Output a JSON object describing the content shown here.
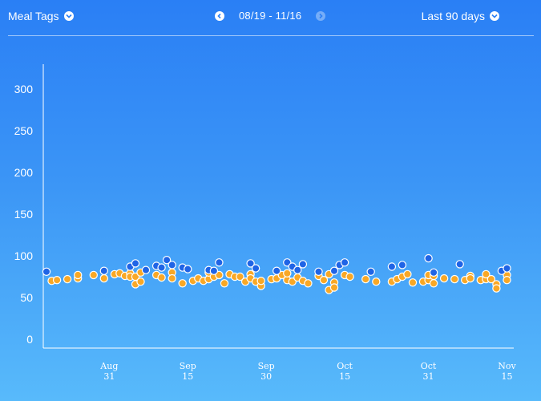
{
  "header": {
    "meal_tags_label": "Meal Tags",
    "date_range_label": "08/19 - 11/16",
    "range_select_label": "Last 90 days",
    "prev_enabled": true,
    "next_enabled": false
  },
  "colors": {
    "orange": "#f9a826",
    "blue": "#1f64e6",
    "axis": "#ffffff"
  },
  "chart_data": {
    "type": "scatter",
    "x_unit": "date",
    "ylim": [
      0,
      330
    ],
    "yticks": [
      0,
      50,
      100,
      150,
      200,
      250,
      300
    ],
    "xlim": [
      "2018-08-19",
      "2018-11-16"
    ],
    "xticks": [
      {
        "month": "Aug",
        "day": "31",
        "date": "2018-08-31"
      },
      {
        "month": "Sep",
        "day": "15",
        "date": "2018-09-15"
      },
      {
        "month": "Sep",
        "day": "30",
        "date": "2018-09-30"
      },
      {
        "month": "Oct",
        "day": "15",
        "date": "2018-10-15"
      },
      {
        "month": "Oct",
        "day": "31",
        "date": "2018-10-31"
      },
      {
        "month": "Nov",
        "day": "15",
        "date": "2018-11-15"
      }
    ],
    "series": [
      {
        "color_key": "orange",
        "points": [
          [
            "2018-08-20",
            70
          ],
          [
            "2018-08-21",
            71
          ],
          [
            "2018-08-23",
            72
          ],
          [
            "2018-08-25",
            73
          ],
          [
            "2018-08-25",
            77
          ],
          [
            "2018-08-28",
            77
          ],
          [
            "2018-08-30",
            73
          ],
          [
            "2018-09-01",
            78
          ],
          [
            "2018-09-02",
            79
          ],
          [
            "2018-09-03",
            76
          ],
          [
            "2018-09-04",
            79
          ],
          [
            "2018-09-04",
            75
          ],
          [
            "2018-09-05",
            66
          ],
          [
            "2018-09-05",
            75
          ],
          [
            "2018-09-06",
            69
          ],
          [
            "2018-09-06",
            80
          ],
          [
            "2018-09-09",
            77
          ],
          [
            "2018-09-10",
            74
          ],
          [
            "2018-09-12",
            80
          ],
          [
            "2018-09-12",
            73
          ],
          [
            "2018-09-14",
            67
          ],
          [
            "2018-09-16",
            70
          ],
          [
            "2018-09-17",
            73
          ],
          [
            "2018-09-18",
            70
          ],
          [
            "2018-09-19",
            72
          ],
          [
            "2018-09-19",
            80
          ],
          [
            "2018-09-20",
            75
          ],
          [
            "2018-09-21",
            77
          ],
          [
            "2018-09-22",
            67
          ],
          [
            "2018-09-23",
            78
          ],
          [
            "2018-09-24",
            75
          ],
          [
            "2018-09-25",
            75
          ],
          [
            "2018-09-26",
            69
          ],
          [
            "2018-09-27",
            78
          ],
          [
            "2018-09-27",
            73
          ],
          [
            "2018-09-28",
            69
          ],
          [
            "2018-09-29",
            64
          ],
          [
            "2018-09-29",
            70
          ],
          [
            "2018-10-01",
            72
          ],
          [
            "2018-10-02",
            73
          ],
          [
            "2018-10-03",
            77
          ],
          [
            "2018-10-04",
            71
          ],
          [
            "2018-10-04",
            79
          ],
          [
            "2018-10-05",
            69
          ],
          [
            "2018-10-06",
            74
          ],
          [
            "2018-10-07",
            70
          ],
          [
            "2018-10-08",
            67
          ],
          [
            "2018-10-10",
            76
          ],
          [
            "2018-10-11",
            71
          ],
          [
            "2018-10-12",
            78
          ],
          [
            "2018-10-12",
            59
          ],
          [
            "2018-10-13",
            68
          ],
          [
            "2018-10-13",
            62
          ],
          [
            "2018-10-15",
            77
          ],
          [
            "2018-10-16",
            75
          ],
          [
            "2018-10-19",
            72
          ],
          [
            "2018-10-21",
            69
          ],
          [
            "2018-10-24",
            69
          ],
          [
            "2018-10-25",
            72
          ],
          [
            "2018-10-26",
            75
          ],
          [
            "2018-10-27",
            78
          ],
          [
            "2018-10-28",
            68
          ],
          [
            "2018-10-30",
            69
          ],
          [
            "2018-10-31",
            71
          ],
          [
            "2018-10-31",
            77
          ],
          [
            "2018-11-01",
            76
          ],
          [
            "2018-11-01",
            67
          ],
          [
            "2018-11-03",
            73
          ],
          [
            "2018-11-05",
            72
          ],
          [
            "2018-11-07",
            71
          ],
          [
            "2018-11-08",
            76
          ],
          [
            "2018-11-08",
            73
          ],
          [
            "2018-11-10",
            71
          ],
          [
            "2018-11-11",
            72
          ],
          [
            "2018-11-11",
            78
          ],
          [
            "2018-11-12",
            72
          ],
          [
            "2018-11-13",
            66
          ],
          [
            "2018-11-13",
            61
          ],
          [
            "2018-11-15",
            77
          ],
          [
            "2018-11-15",
            71
          ]
        ]
      },
      {
        "color_key": "blue",
        "points": [
          [
            "2018-08-19",
            81
          ],
          [
            "2018-08-30",
            82
          ],
          [
            "2018-09-04",
            87
          ],
          [
            "2018-09-05",
            91
          ],
          [
            "2018-09-07",
            83
          ],
          [
            "2018-09-09",
            88
          ],
          [
            "2018-09-10",
            86
          ],
          [
            "2018-09-11",
            95
          ],
          [
            "2018-09-12",
            89
          ],
          [
            "2018-09-14",
            86
          ],
          [
            "2018-09-15",
            84
          ],
          [
            "2018-09-19",
            83
          ],
          [
            "2018-09-20",
            82
          ],
          [
            "2018-09-21",
            92
          ],
          [
            "2018-09-27",
            91
          ],
          [
            "2018-09-28",
            85
          ],
          [
            "2018-10-02",
            82
          ],
          [
            "2018-10-04",
            92
          ],
          [
            "2018-10-05",
            87
          ],
          [
            "2018-10-06",
            83
          ],
          [
            "2018-10-07",
            90
          ],
          [
            "2018-10-10",
            81
          ],
          [
            "2018-10-13",
            82
          ],
          [
            "2018-10-14",
            89
          ],
          [
            "2018-10-15",
            92
          ],
          [
            "2018-10-20",
            81
          ],
          [
            "2018-10-24",
            87
          ],
          [
            "2018-10-26",
            89
          ],
          [
            "2018-10-31",
            97
          ],
          [
            "2018-11-01",
            80
          ],
          [
            "2018-11-06",
            90
          ],
          [
            "2018-11-14",
            82
          ],
          [
            "2018-11-15",
            85
          ]
        ]
      }
    ]
  }
}
